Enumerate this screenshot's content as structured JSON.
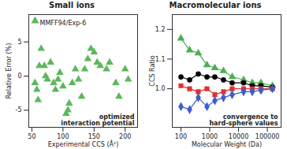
{
  "chart_data": [
    {
      "type": "scatter",
      "title": "Small ions",
      "xlabel": "Experimental CCS (Å²)",
      "ylabel": "Relative Error (%)",
      "annotation": "optimized\ninteraction potential",
      "xlim": [
        45,
        220
      ],
      "xticks": [
        50,
        100,
        150,
        200
      ],
      "ylim": [
        -7.5,
        9
      ],
      "yticks": [
        -5,
        0,
        5
      ],
      "grid": false,
      "legend": "top-left",
      "series": [
        {
          "name": "MMFF94/Exp-6",
          "color": "#5cb85c",
          "marker": "triangle",
          "x": [
            55,
            58,
            60,
            62,
            65,
            70,
            72,
            75,
            80,
            85,
            88,
            92,
            95,
            100,
            105,
            108,
            110,
            115,
            120,
            125,
            130,
            135,
            140,
            145,
            150,
            155,
            160,
            170,
            175,
            185,
            190,
            200,
            205
          ],
          "values": [
            -1,
            -2,
            -3.5,
            1.5,
            4,
            1.5,
            0,
            -0.5,
            2,
            -1,
            -2,
            -0.5,
            0.5,
            -1.5,
            -5.5,
            -5,
            -4,
            -1,
            1,
            -0.5,
            -3,
            1,
            2.5,
            4,
            3.5,
            2,
            1.5,
            1,
            2,
            -1,
            -3,
            1,
            -0.5
          ]
        }
      ]
    },
    {
      "type": "line",
      "title": "Macromolecular ions",
      "xlabel": "Molecular Weight (Da)",
      "ylabel": "CCS Ratio",
      "annotation": "convergence to\nhard-sphere values",
      "log": "x",
      "xlim": [
        50,
        300000
      ],
      "xticks": [
        100,
        1000,
        10000,
        100000
      ],
      "ylim": [
        0.87,
        1.25
      ],
      "yticks": [
        {
          "value": 1,
          "label": "1.0"
        },
        1.1,
        1.2
      ],
      "grid": false,
      "x": [
        100,
        200,
        400,
        800,
        1500,
        3000,
        6000,
        15000,
        30000,
        60000,
        150000
      ],
      "series": [
        {
          "color": "#4caf50",
          "marker": "triangle",
          "values": [
            1.17,
            1.13,
            1.12,
            1.08,
            1.07,
            1.06,
            1.04,
            1.03,
            1.02,
            1.02,
            1.01
          ]
        },
        {
          "color": "#000000",
          "marker": "circle",
          "values": [
            1.04,
            1.03,
            1.05,
            1.04,
            1.04,
            1.03,
            1.02,
            1.02,
            1.01,
            1.01,
            1.005
          ]
        },
        {
          "color": "#e03030",
          "marker": "square",
          "values": [
            1.01,
            1.0,
            0.99,
            1.0,
            0.98,
            0.99,
            1.0,
            1.0,
            1.0,
            1.0,
            1.0
          ]
        },
        {
          "color": "#3a5fcd",
          "marker": "diamond",
          "values": [
            0.94,
            0.93,
            0.97,
            0.94,
            0.96,
            0.97,
            0.98,
            0.99,
            0.99,
            0.995,
            1.0
          ]
        }
      ]
    }
  ]
}
